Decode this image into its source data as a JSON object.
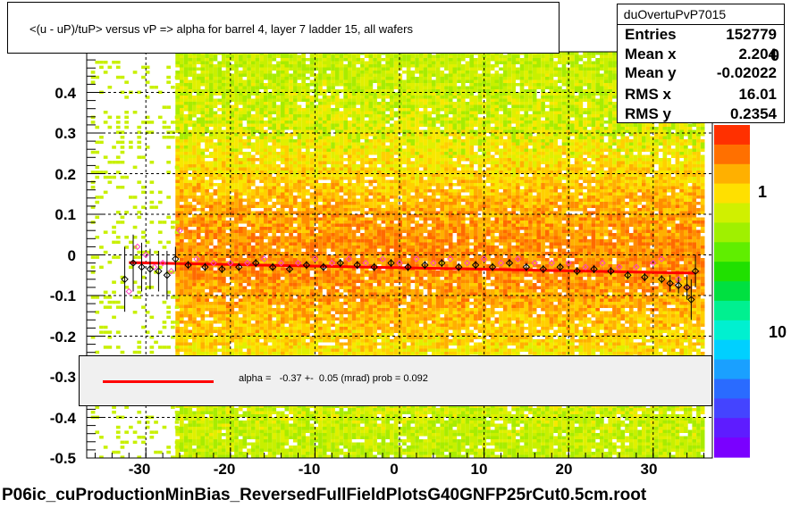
{
  "title": "<(u - uP)/tuP>  versus   vP => alpha for barrel 4, layer 7 ladder 15, all wafers",
  "footer": "P06ic_cuProductionMinBias_ReversedFullFieldPlotsG40GNFP25rCut0.5cm.root",
  "stats": {
    "name": "duOvertuPvP7015",
    "rows": [
      {
        "label": "Entries",
        "value": "152779"
      },
      {
        "label": "Mean x",
        "value": "2.204"
      },
      {
        "label": "Mean y",
        "value": "-0.02022"
      },
      {
        "label": "RMS x",
        "value": "16.01"
      },
      {
        "label": "RMS y",
        "value": "0.2354"
      }
    ]
  },
  "fit": {
    "text": "alpha =   -0.37 +-  0.05 (mrad) prob = 0.092",
    "line_color": "#ff0000"
  },
  "colorbar": {
    "labels": [
      "1",
      "10"
    ],
    "partial_top_label": "0"
  },
  "chart_data": {
    "type": "heatmap",
    "xlim": [
      -37,
      37
    ],
    "ylim": [
      -0.5,
      0.5
    ],
    "x_ticks": [
      "-30",
      "-20",
      "-10",
      "0",
      "10",
      "20",
      "30"
    ],
    "x_tick_values": [
      -30,
      -20,
      -10,
      0,
      10,
      20,
      30
    ],
    "y_ticks": [
      "-0.5",
      "-0.4",
      "-0.3",
      "-0.2",
      "-0.1",
      "0",
      "0.1",
      "0.2",
      "0.3",
      "0.4"
    ],
    "y_tick_values": [
      -0.5,
      -0.4,
      -0.3,
      -0.2,
      -0.1,
      0,
      0.1,
      0.2,
      0.3,
      0.4
    ],
    "grid": true,
    "heatmap_x_range": [
      -26.5,
      36
    ],
    "fit_line": {
      "x": [
        -32,
        35
      ],
      "y": [
        -0.019,
        -0.045
      ],
      "color": "#ff0000"
    },
    "profile_black": {
      "x": [
        -32.5,
        -31.5,
        -30.5,
        -29.5,
        -28.5,
        -27.5,
        -26.5,
        -25,
        -23,
        -21,
        -19,
        -17,
        -15,
        -13,
        -11,
        -9,
        -7,
        -5,
        -3,
        -1,
        1,
        3,
        5,
        7,
        9,
        11,
        13,
        15,
        17,
        19,
        21,
        23,
        25,
        27,
        29,
        31,
        32,
        33,
        34,
        34.5,
        35
      ],
      "y": [
        -0.06,
        -0.02,
        -0.03,
        -0.035,
        -0.04,
        -0.05,
        -0.01,
        -0.025,
        -0.03,
        -0.035,
        -0.03,
        -0.02,
        -0.03,
        -0.035,
        -0.025,
        -0.03,
        -0.02,
        -0.025,
        -0.03,
        -0.02,
        -0.03,
        -0.025,
        -0.02,
        -0.03,
        -0.025,
        -0.03,
        -0.02,
        -0.03,
        -0.035,
        -0.03,
        -0.04,
        -0.035,
        -0.04,
        -0.05,
        -0.055,
        -0.06,
        -0.07,
        -0.075,
        -0.08,
        -0.11,
        -0.04
      ],
      "err": [
        0.08,
        0.07,
        0.06,
        0.05,
        0.05,
        0.06,
        0.03,
        0.01,
        0.01,
        0.01,
        0.01,
        0.01,
        0.01,
        0.01,
        0.01,
        0.01,
        0.01,
        0.01,
        0.01,
        0.01,
        0.01,
        0.01,
        0.01,
        0.01,
        0.01,
        0.01,
        0.01,
        0.01,
        0.01,
        0.01,
        0.01,
        0.01,
        0.01,
        0.01,
        0.01,
        0.01,
        0.02,
        0.02,
        0.03,
        0.05,
        0.04
      ]
    },
    "profile_pink": {
      "x": [
        -32,
        -31,
        -30,
        -29,
        -28,
        -27,
        -26,
        -24,
        -22,
        -20,
        -18,
        -16,
        -14,
        -12,
        -10,
        -8,
        -6,
        -4,
        -2,
        0,
        2,
        4,
        6,
        8,
        10,
        12,
        14,
        16,
        18,
        20,
        22,
        24,
        26,
        28,
        30,
        31,
        33,
        34
      ],
      "y": [
        -0.09,
        0.02,
        0.0,
        -0.03,
        -0.02,
        -0.04,
        0.06,
        -0.01,
        -0.02,
        -0.02,
        -0.02,
        -0.01,
        -0.02,
        -0.02,
        -0.01,
        -0.02,
        -0.01,
        -0.02,
        -0.01,
        -0.02,
        -0.01,
        -0.02,
        -0.01,
        -0.02,
        -0.01,
        -0.02,
        -0.01,
        -0.02,
        -0.02,
        -0.02,
        -0.03,
        -0.02,
        -0.03,
        -0.03,
        -0.02,
        -0.01,
        -0.06,
        -0.08
      ]
    }
  }
}
